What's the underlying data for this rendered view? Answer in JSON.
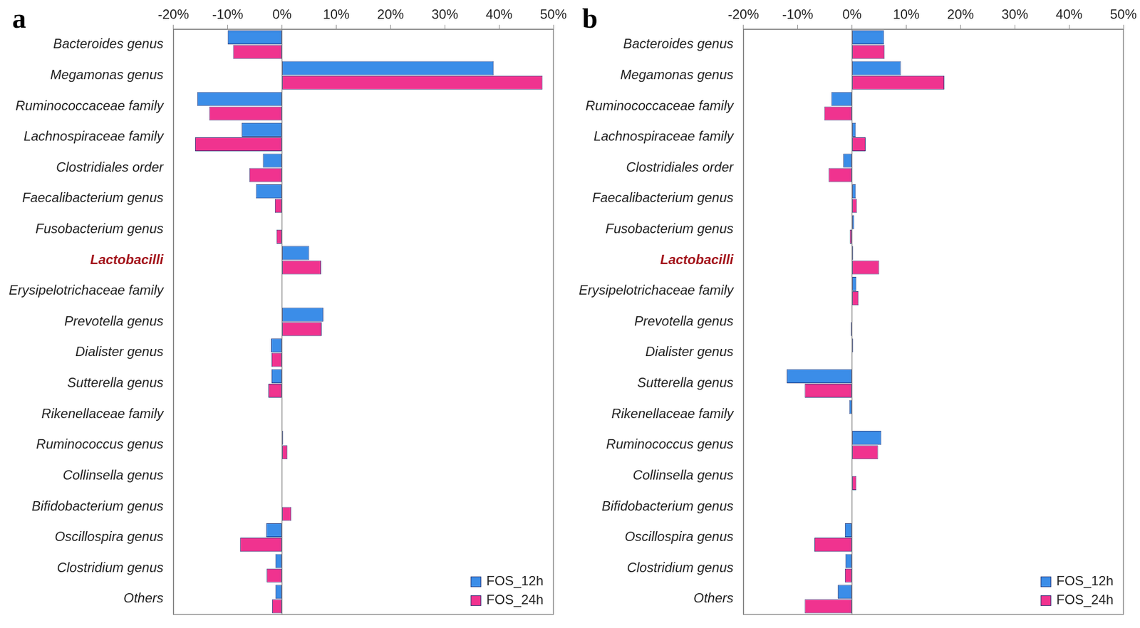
{
  "chart_data": [
    {
      "type": "bar",
      "title": "a",
      "orientation": "horizontal",
      "grid": false,
      "legend": "lower right",
      "categories": [
        "Bacteroides genus",
        "Megamonas genus",
        "Ruminococcaceae family",
        "Lachnospiraceae family",
        "Clostridiales order",
        "Faecalibacterium genus",
        "Fusobacterium genus",
        "Lactobacilli",
        "Erysipelotrichaceae family",
        "Prevotella genus",
        "Dialister genus",
        "Sutterella genus",
        "Rikenellaceae family",
        "Ruminococcus genus",
        "Collinsella genus",
        "Bifidobacterium genus",
        "Oscillospira genus",
        "Clostridium genus",
        "Others"
      ],
      "series": [
        {
          "name": "FOS_12h",
          "color": "#3b8de8",
          "values": [
            -10,
            39,
            -15.6,
            -7.4,
            -3.5,
            -4.8,
            0,
            5,
            0,
            7.6,
            -2,
            -1.9,
            0,
            0.2,
            0,
            0,
            -2.9,
            -1.2,
            -1.2
          ]
        },
        {
          "name": "FOS_24h",
          "color": "#f0338f",
          "values": [
            -9,
            48,
            -13.4,
            -16,
            -6,
            -1.3,
            -1,
            7.2,
            0,
            7.3,
            -1.9,
            -2.5,
            0,
            1,
            0,
            1.7,
            -7.7,
            -2.8,
            -1.8
          ]
        }
      ],
      "xlim": [
        -20,
        50
      ],
      "xticks": [
        {
          "value": -20,
          "label": "-20%"
        },
        {
          "value": -10,
          "label": "-10%"
        },
        {
          "value": 0,
          "label": "0%"
        },
        {
          "value": 10,
          "label": "10%"
        },
        {
          "value": 20,
          "label": "20%"
        },
        {
          "value": 30,
          "label": "30%"
        },
        {
          "value": 40,
          "label": "40%"
        },
        {
          "value": 50,
          "label": "50%"
        }
      ]
    },
    {
      "type": "bar",
      "title": "b",
      "orientation": "horizontal",
      "grid": false,
      "legend": "lower right",
      "categories": [
        "Bacteroides genus",
        "Megamonas genus",
        "Ruminococcaceae family",
        "Lachnospiraceae family",
        "Clostridiales order",
        "Faecalibacterium genus",
        "Fusobacterium genus",
        "Lactobacilli",
        "Erysipelotrichaceae family",
        "Prevotella genus",
        "Dialister genus",
        "Sutterella genus",
        "Rikenellaceae family",
        "Ruminococcus genus",
        "Collinsella genus",
        "Bifidobacterium genus",
        "Oscillospira genus",
        "Clostridium genus",
        "Others"
      ],
      "series": [
        {
          "name": "FOS_12h",
          "color": "#3b8de8",
          "values": [
            5.9,
            9,
            -3.8,
            0.7,
            -1.6,
            0.7,
            0.4,
            0.2,
            0.8,
            0,
            0.2,
            -12,
            -0.5,
            5.4,
            0,
            0,
            -1.3,
            -1.2,
            -2.6
          ]
        },
        {
          "name": "FOS_24h",
          "color": "#f0338f",
          "values": [
            6,
            17,
            -5.1,
            2.5,
            -4.3,
            0.9,
            -0.4,
            5,
            1.2,
            -0.2,
            0,
            -8.7,
            0,
            4.8,
            0.8,
            0,
            -6.9,
            -1.3,
            -8.7
          ]
        }
      ],
      "xlim": [
        -20,
        50
      ],
      "xticks": [
        {
          "value": -20,
          "label": "-20%"
        },
        {
          "value": -10,
          "label": "-10%"
        },
        {
          "value": 0,
          "label": "0%"
        },
        {
          "value": 10,
          "label": "10%"
        },
        {
          "value": 20,
          "label": "20%"
        },
        {
          "value": 30,
          "label": "30%"
        },
        {
          "value": 40,
          "label": "40%"
        },
        {
          "value": 50,
          "label": "50%"
        }
      ]
    }
  ]
}
